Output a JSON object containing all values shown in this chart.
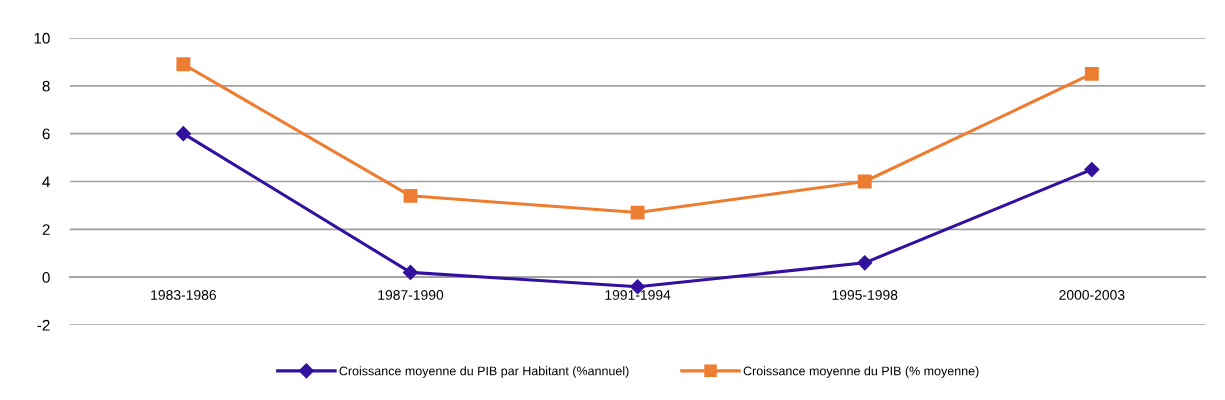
{
  "chart_data": {
    "type": "line",
    "categories": [
      "1983-1986",
      "1987-1990",
      "1991-1994",
      "1995-1998",
      "2000-2003"
    ],
    "series": [
      {
        "name": "Croissance moyenne du PIB par Habitant (%annuel)",
        "color": "#3311a0",
        "marker": "diamond",
        "values": [
          6.0,
          0.2,
          -0.4,
          0.6,
          4.5
        ]
      },
      {
        "name": "Croissance moyenne du PIB (% moyenne)",
        "color": "#ed7d31",
        "marker": "square",
        "values": [
          8.9,
          3.4,
          2.7,
          4.0,
          8.5
        ]
      }
    ],
    "ylim": [
      -2,
      10
    ],
    "yticks": [
      -2,
      0,
      2,
      4,
      6,
      8,
      10
    ],
    "grid": "y",
    "legend": "bottom",
    "line_style": "solid"
  }
}
